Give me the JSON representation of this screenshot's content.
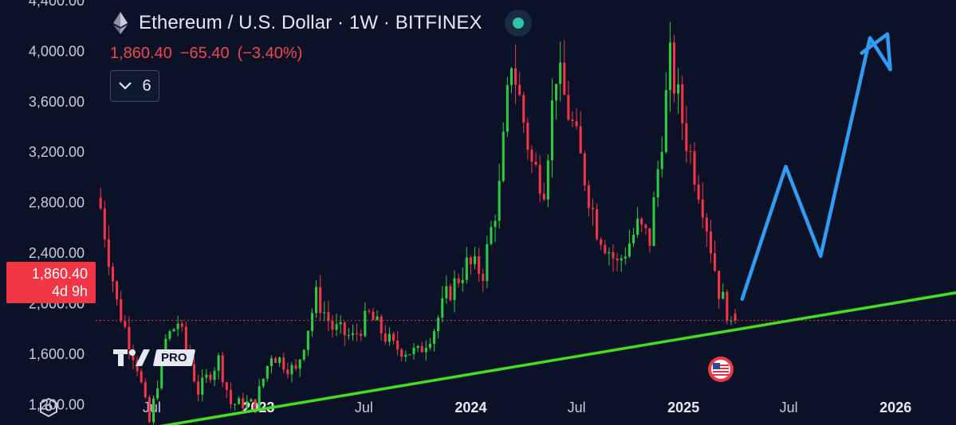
{
  "header": {
    "symbol_title": "Ethereum / U.S. Dollar · 1W · BITFINEX",
    "logo_icon": "ethereum-logo-icon",
    "live_status_icon": "market-open-dot-icon"
  },
  "quote": {
    "last": "1,860.40",
    "change": "−65.40",
    "change_pct": "(−3.40%)"
  },
  "indicators_button": {
    "count": "6",
    "icon": "chevron-down-icon"
  },
  "price_tag": {
    "price": "1,860.40",
    "countdown": "4d 9h"
  },
  "branding": {
    "badge": "PRO"
  },
  "colors": {
    "background": "#0b1228",
    "up": "#2ecc40",
    "down": "#f23645",
    "trendline": "#44dd22",
    "projection": "#2f9df4",
    "axis_text": "#c7ccd8"
  },
  "chart_data": {
    "type": "candlestick",
    "interval": "1W",
    "exchange": "BITFINEX",
    "ylim": [
      1000,
      4400
    ],
    "y_ticks": [
      1200,
      1600,
      2000,
      2400,
      2800,
      3200,
      3600,
      4000,
      4400
    ],
    "y_tick_labels": [
      "1,200.00",
      "1,600.00",
      "2,000.00",
      "2,400.00",
      "2,800.00",
      "3,200.00",
      "3,600.00",
      "4,000.00",
      "4,400.00"
    ],
    "x_tick_labels": [
      {
        "date": "2022-07-01",
        "label": "Jul"
      },
      {
        "date": "2023-01-01",
        "label": "2023"
      },
      {
        "date": "2023-07-01",
        "label": "Jul"
      },
      {
        "date": "2024-01-01",
        "label": "2024"
      },
      {
        "date": "2024-07-01",
        "label": "Jul"
      },
      {
        "date": "2025-01-01",
        "label": "2025"
      },
      {
        "date": "2025-07-01",
        "label": "Jul"
      },
      {
        "date": "2026-01-01",
        "label": "2026"
      }
    ],
    "x_range": [
      "2022-04-01",
      "2026-04-15"
    ],
    "last_price": 1860.4,
    "trendline": [
      {
        "date": "2022-06-18",
        "price": 1000
      },
      {
        "date": "2026-04-15",
        "price": 2080
      }
    ],
    "projection_path": [
      {
        "date": "2025-04-12",
        "price": 2030
      },
      {
        "date": "2025-06-26",
        "price": 3080
      },
      {
        "date": "2025-08-25",
        "price": 2370
      },
      {
        "date": "2025-11-18",
        "price": 4100
      },
      {
        "date": "2025-12-23",
        "price": 3850
      },
      {
        "date": "2025-12-18",
        "price": 4130
      },
      {
        "date": "2025-11-04",
        "price": 3980
      }
    ],
    "series": [
      {
        "name": "ETHUSD",
        "weekly_close_anchors": [
          {
            "date": "2022-04-04",
            "close": 2750
          },
          {
            "date": "2022-05-02",
            "close": 2000
          },
          {
            "date": "2022-06-06",
            "close": 1500
          },
          {
            "date": "2022-06-27",
            "close": 1050
          },
          {
            "date": "2022-07-25",
            "close": 1700
          },
          {
            "date": "2022-08-15",
            "close": 1850
          },
          {
            "date": "2022-09-19",
            "close": 1300
          },
          {
            "date": "2022-10-24",
            "close": 1550
          },
          {
            "date": "2022-11-14",
            "close": 1200
          },
          {
            "date": "2022-12-26",
            "close": 1200
          },
          {
            "date": "2023-01-23",
            "close": 1600
          },
          {
            "date": "2023-03-06",
            "close": 1450
          },
          {
            "date": "2023-04-10",
            "close": 2050
          },
          {
            "date": "2023-05-08",
            "close": 1800
          },
          {
            "date": "2023-06-12",
            "close": 1720
          },
          {
            "date": "2023-07-10",
            "close": 1900
          },
          {
            "date": "2023-08-21",
            "close": 1650
          },
          {
            "date": "2023-10-02",
            "close": 1600
          },
          {
            "date": "2023-10-30",
            "close": 1800
          },
          {
            "date": "2023-11-20",
            "close": 2050
          },
          {
            "date": "2023-12-25",
            "close": 2300
          },
          {
            "date": "2024-01-22",
            "close": 2250
          },
          {
            "date": "2024-02-19",
            "close": 2900
          },
          {
            "date": "2024-03-11",
            "close": 3950
          },
          {
            "date": "2024-04-15",
            "close": 3100
          },
          {
            "date": "2024-05-06",
            "close": 2950
          },
          {
            "date": "2024-05-27",
            "close": 3850
          },
          {
            "date": "2024-06-24",
            "close": 3400
          },
          {
            "date": "2024-08-05",
            "close": 2600
          },
          {
            "date": "2024-09-09",
            "close": 2300
          },
          {
            "date": "2024-10-14",
            "close": 2600
          },
          {
            "date": "2024-11-04",
            "close": 2500
          },
          {
            "date": "2024-12-09",
            "close": 3900
          },
          {
            "date": "2025-01-06",
            "close": 3300
          },
          {
            "date": "2025-02-03",
            "close": 2800
          },
          {
            "date": "2025-03-03",
            "close": 2100
          },
          {
            "date": "2025-03-24",
            "close": 1860
          }
        ]
      }
    ]
  }
}
